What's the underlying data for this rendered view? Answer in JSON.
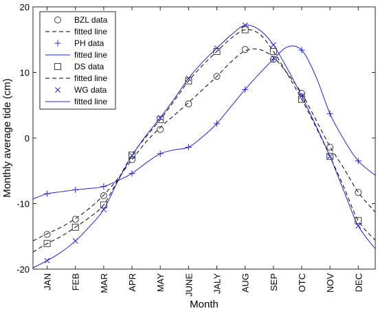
{
  "chart_data": {
    "type": "line",
    "xlabel": "Month",
    "ylabel": "Monthly average tide (cm)",
    "categories": [
      "JAN",
      "FEB",
      "MAR",
      "APR",
      "MAY",
      "JUNE",
      "JALY",
      "AUG",
      "SEP",
      "OTC",
      "NOV",
      "DEC"
    ],
    "xlim": [
      0.5,
      12.6
    ],
    "ylim": [
      -20,
      20
    ],
    "yticks": [
      -20,
      -10,
      0,
      10,
      20
    ],
    "grid": false,
    "legend_position": "top-left",
    "series": [
      {
        "name": "BZL data",
        "kind": "markers",
        "marker": "circle",
        "color": "#3c3c3c",
        "values": [
          -14.7,
          -12.4,
          -8.8,
          -3.3,
          1.3,
          5.2,
          9.4,
          13.5,
          12.0,
          6.8,
          -1.4,
          -8.3
        ]
      },
      {
        "name": "fitted line",
        "kind": "line",
        "dash": "dashed",
        "color": "#000000",
        "x": [
          0.5,
          1,
          1.5,
          2,
          2.5,
          3,
          3.5,
          4,
          4.5,
          5,
          5.5,
          6,
          6.5,
          7,
          7.5,
          8,
          8.5,
          9,
          9.5,
          10,
          10.5,
          11,
          11.5,
          12,
          12.6
        ],
        "y": [
          -15.7,
          -14.6,
          -13.6,
          -12.3,
          -10.7,
          -8.7,
          -6.2,
          -3.3,
          -0.6,
          1.6,
          3.5,
          5.4,
          7.4,
          9.4,
          11.6,
          13.3,
          13.5,
          12.3,
          9.8,
          6.8,
          2.8,
          -1.3,
          -4.7,
          -8.3,
          -11.3
        ]
      },
      {
        "name": "PH data",
        "kind": "markers",
        "marker": "plus",
        "color": "#2020e0",
        "values": [
          -8.5,
          -7.9,
          -7.4,
          -5.4,
          -2.4,
          -1.4,
          2.2,
          7.4,
          12.0,
          13.4,
          3.7,
          -3.5
        ]
      },
      {
        "name": "fitted line",
        "kind": "line",
        "dash": "solid",
        "color": "#2020e0",
        "x": [
          0.5,
          1,
          1.5,
          2,
          2.5,
          3,
          3.5,
          4,
          4.5,
          5,
          5.5,
          6,
          6.5,
          7,
          7.5,
          8,
          8.5,
          9,
          9.5,
          10,
          10.5,
          11,
          11.5,
          12,
          12.6
        ],
        "y": [
          -9.3,
          -8.5,
          -8.2,
          -7.9,
          -7.7,
          -7.4,
          -6.5,
          -5.4,
          -3.8,
          -2.4,
          -1.8,
          -1.4,
          0.2,
          2.2,
          4.8,
          7.4,
          9.8,
          12.0,
          13.9,
          13.4,
          9.4,
          3.7,
          -0.3,
          -3.5,
          -5.7
        ]
      },
      {
        "name": "DS data",
        "kind": "markers",
        "marker": "square",
        "color": "#3c3c3c",
        "values": [
          -16.1,
          -13.6,
          -10.2,
          -2.6,
          2.8,
          8.7,
          13.2,
          16.5,
          13.2,
          5.9,
          -2.8,
          -12.6
        ]
      },
      {
        "name": "fitted line",
        "kind": "line",
        "dash": "dashed",
        "color": "#000000",
        "x": [
          0.5,
          1,
          1.5,
          2,
          2.5,
          3,
          3.5,
          4,
          4.5,
          5,
          5.5,
          6,
          6.5,
          7,
          7.5,
          8,
          8.5,
          9,
          9.5,
          10,
          10.5,
          11,
          11.5,
          12,
          12.6
        ],
        "y": [
          -17.4,
          -16.1,
          -15.0,
          -13.6,
          -12.1,
          -10.2,
          -6.4,
          -2.6,
          0.2,
          2.8,
          5.7,
          8.7,
          11.1,
          13.2,
          15.2,
          16.5,
          15.9,
          13.2,
          9.7,
          5.9,
          1.7,
          -2.8,
          -7.6,
          -12.6,
          -15.6
        ]
      },
      {
        "name": "WG data",
        "kind": "markers",
        "marker": "cross",
        "color": "#2020e0",
        "values": [
          -18.7,
          -15.7,
          -10.9,
          -2.7,
          3.1,
          9.1,
          13.7,
          17.2,
          14.2,
          6.4,
          -2.8,
          -13.4
        ]
      },
      {
        "name": "fitted line",
        "kind": "line",
        "dash": "solid",
        "color": "#2020e0",
        "x": [
          0.5,
          1,
          1.5,
          2,
          2.5,
          3,
          3.5,
          4,
          4.5,
          5,
          5.5,
          6,
          6.5,
          7,
          7.5,
          8,
          8.5,
          9,
          9.5,
          10,
          10.5,
          11,
          11.5,
          12,
          12.6
        ],
        "y": [
          -19.8,
          -18.7,
          -17.4,
          -15.7,
          -13.5,
          -10.9,
          -6.6,
          -2.7,
          0.4,
          3.1,
          6.0,
          9.1,
          11.6,
          13.7,
          15.7,
          17.2,
          16.5,
          14.2,
          10.5,
          6.4,
          1.9,
          -2.8,
          -8.2,
          -13.4,
          -16.9
        ]
      }
    ]
  }
}
